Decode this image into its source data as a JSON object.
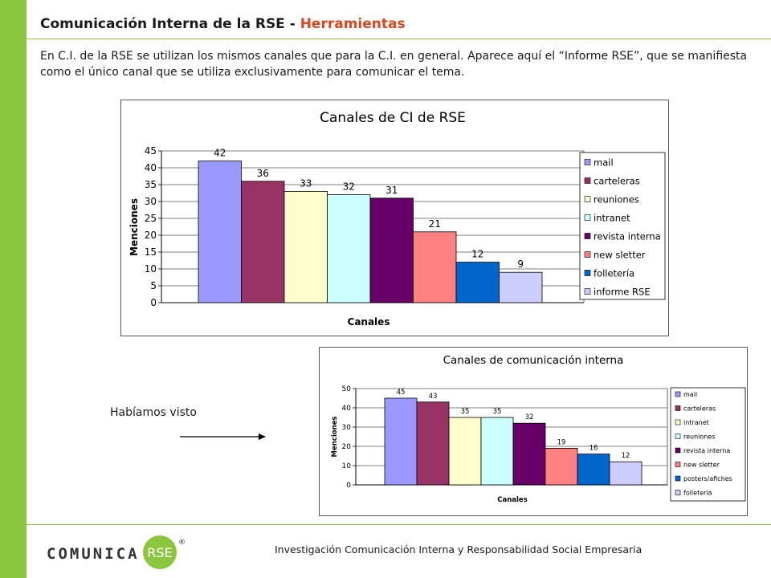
{
  "header": {
    "title_main": "Comunicación Interna de la RSE - ",
    "title_accent": "Herramientas"
  },
  "intro_text": "En C.I. de la RSE se utilizan los mismos canales que para la C.I. en general. Aparece aquí el “Informe RSE”, que se manifiesta como el único canal que se utiliza exclusivamente para comunicar el tema.",
  "note": {
    "label": "Habíamos visto"
  },
  "footer": {
    "logo_text": "COMUNICA",
    "logo_badge": "RSE",
    "registered_mark": "®",
    "caption": "Investigación Comunicación Interna y Responsabilidad Social Empresaria"
  },
  "colors": {
    "accent_green": "#8cc63f",
    "title_accent": "#d9461c"
  },
  "chart_data": [
    {
      "type": "bar",
      "title": "Canales de CI de RSE",
      "xlabel": "Canales",
      "ylabel": "Menciones",
      "ylim": [
        0,
        45
      ],
      "yticks": [
        0,
        5,
        10,
        15,
        20,
        25,
        30,
        35,
        40,
        45
      ],
      "grid": true,
      "legend_position": "right",
      "categories": [
        "mail",
        "carteleras",
        "reuniones",
        "intranet",
        "revista interna",
        "new sletter",
        "folletería",
        "informe RSE"
      ],
      "values": [
        42,
        36,
        33,
        32,
        31,
        21,
        12,
        9
      ],
      "colors": [
        "#9999ff",
        "#993366",
        "#ffffcc",
        "#ccffff",
        "#660066",
        "#ff8080",
        "#0066cc",
        "#ccccff"
      ]
    },
    {
      "type": "bar",
      "title": "Canales de comunicación interna",
      "xlabel": "Canales",
      "ylabel": "Menciones",
      "ylim": [
        0,
        50
      ],
      "yticks": [
        0,
        10,
        20,
        30,
        40,
        50
      ],
      "grid": true,
      "legend_position": "right",
      "categories": [
        "mail",
        "carteleras",
        "intranet",
        "reuniones",
        "revista interna",
        "new sletter",
        "posters/afiches",
        "folletería"
      ],
      "values": [
        45,
        43,
        35,
        35,
        32,
        19,
        16,
        12
      ],
      "colors": [
        "#9999ff",
        "#993366",
        "#ffffcc",
        "#ccffff",
        "#660066",
        "#ff8080",
        "#0066cc",
        "#ccccff"
      ]
    }
  ]
}
